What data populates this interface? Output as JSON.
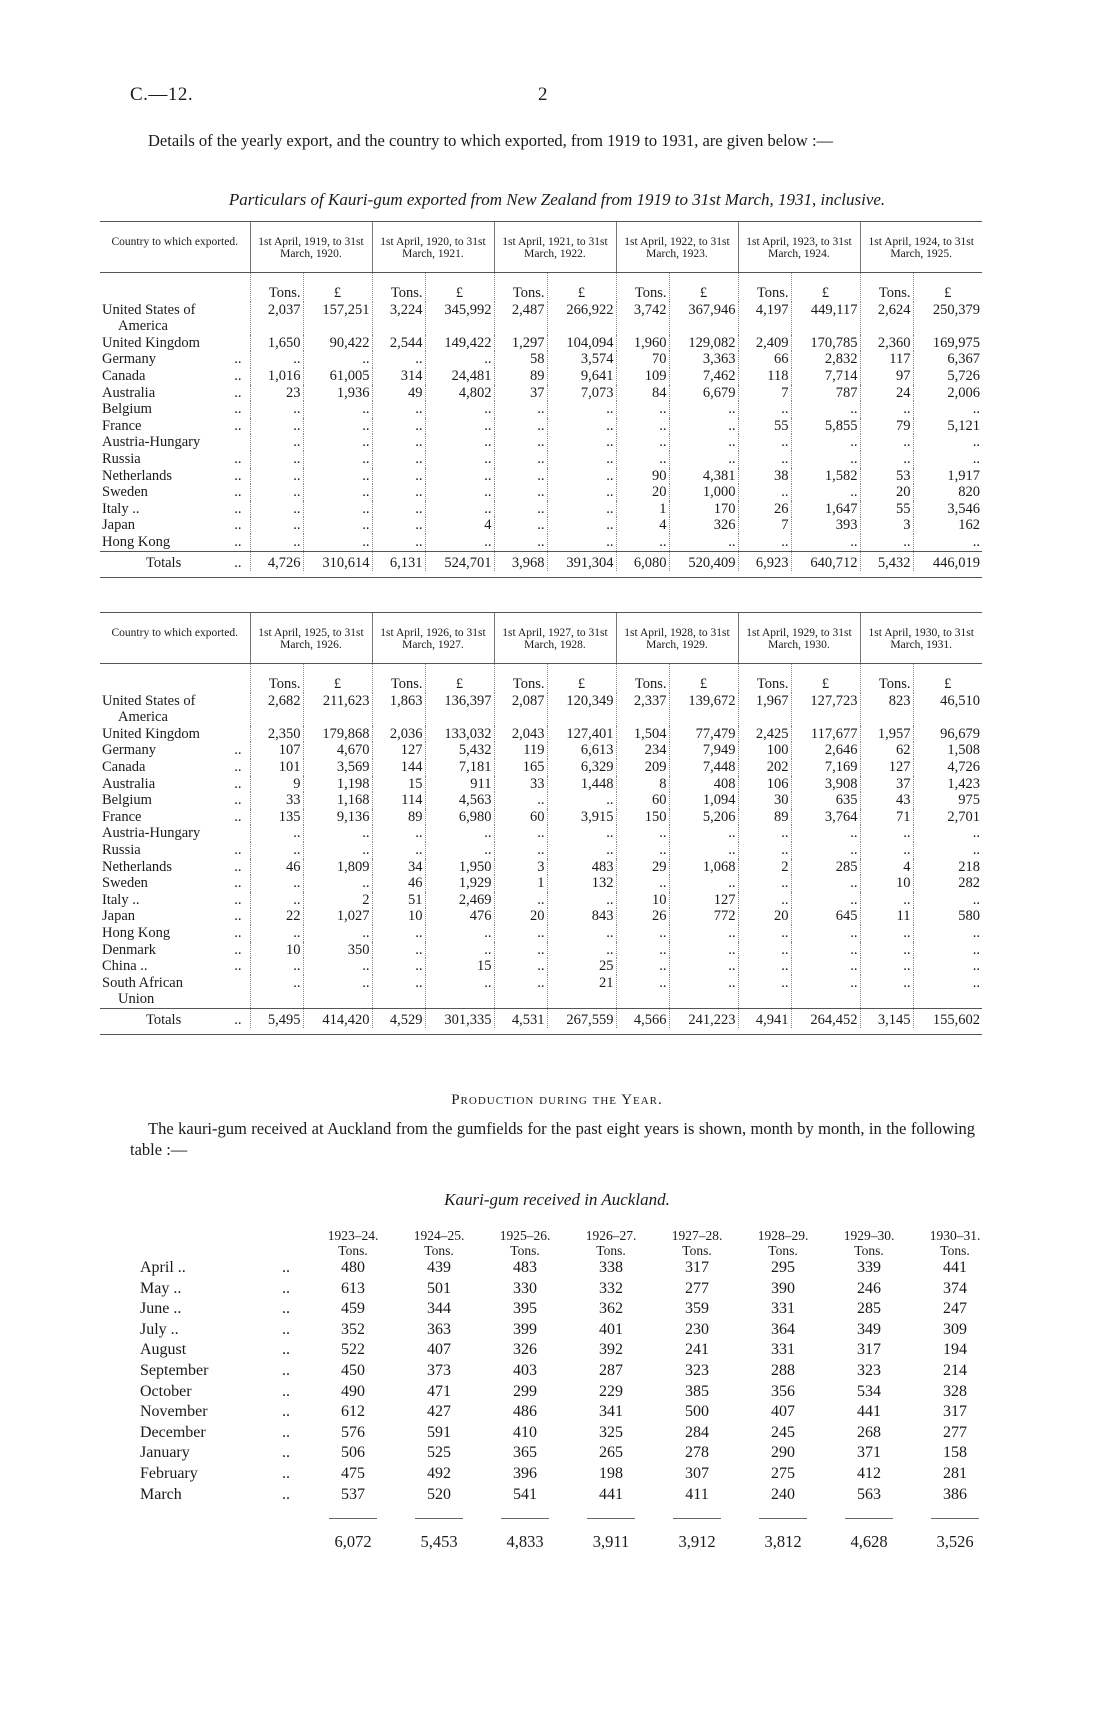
{
  "header": {
    "reference": "C.—12.",
    "page_number": "2"
  },
  "intro_paragraph": "Details of the yearly export, and the country to which exported, from 1919 to 1931, are given below :—",
  "export_table_title": "Particulars of Kauri-gum exported from New Zealand from 1919 to 31st March, 1931, inclusive.",
  "leader": "..",
  "units": {
    "tons": "Tons.",
    "pounds": "£"
  },
  "country_header": "Country to which exported.",
  "totals_label": "Totals",
  "export_tables": [
    {
      "periods": [
        "1st April, 1919, to 31st March, 1920.",
        "1st April, 1920, to 31st March, 1921.",
        "1st April, 1921, to 31st March, 1922.",
        "1st April, 1922, to 31st March, 1923.",
        "1st April, 1923, to 31st March, 1924.",
        "1st April, 1924, to 31st March, 1925."
      ],
      "rows": [
        {
          "country": "United States of",
          "continued": "America",
          "leader": false,
          "values": [
            "2,037",
            "157,251",
            "3,224",
            "345,992",
            "2,487",
            "266,922",
            "3,742",
            "367,946",
            "4,197",
            "449,117",
            "2,624",
            "250,379"
          ]
        },
        {
          "country": "United Kingdom",
          "leader": false,
          "values": [
            "1,650",
            "90,422",
            "2,544",
            "149,422",
            "1,297",
            "104,094",
            "1,960",
            "129,082",
            "2,409",
            "170,785",
            "2,360",
            "169,975"
          ]
        },
        {
          "country": "Germany",
          "leader": true,
          "values": [
            "..",
            "..",
            "..",
            "..",
            "58",
            "3,574",
            "70",
            "3,363",
            "66",
            "2,832",
            "117",
            "6,367"
          ]
        },
        {
          "country": "Canada",
          "leader": true,
          "values": [
            "1,016",
            "61,005",
            "314",
            "24,481",
            "89",
            "9,641",
            "109",
            "7,462",
            "118",
            "7,714",
            "97",
            "5,726"
          ]
        },
        {
          "country": "Australia",
          "leader": true,
          "values": [
            "23",
            "1,936",
            "49",
            "4,802",
            "37",
            "7,073",
            "84",
            "6,679",
            "7",
            "787",
            "24",
            "2,006"
          ]
        },
        {
          "country": "Belgium",
          "leader": true,
          "values": [
            "..",
            "..",
            "..",
            "..",
            "..",
            "..",
            "..",
            "..",
            "..",
            "..",
            "..",
            ".."
          ]
        },
        {
          "country": "France",
          "leader": true,
          "values": [
            "..",
            "..",
            "..",
            "..",
            "..",
            "..",
            "..",
            "..",
            "55",
            "5,855",
            "79",
            "5,121"
          ]
        },
        {
          "country": "Austria-Hungary",
          "leader": false,
          "values": [
            "..",
            "..",
            "..",
            "..",
            "..",
            "..",
            "..",
            "..",
            "..",
            "..",
            "..",
            ".."
          ]
        },
        {
          "country": "Russia",
          "leader": true,
          "values": [
            "..",
            "..",
            "..",
            "..",
            "..",
            "..",
            "..",
            "..",
            "..",
            "..",
            "..",
            ".."
          ]
        },
        {
          "country": "Netherlands",
          "leader": true,
          "values": [
            "..",
            "..",
            "..",
            "..",
            "..",
            "..",
            "90",
            "4,381",
            "38",
            "1,582",
            "53",
            "1,917"
          ]
        },
        {
          "country": "Sweden",
          "leader": true,
          "values": [
            "..",
            "..",
            "..",
            "..",
            "..",
            "..",
            "20",
            "1,000",
            "..",
            "..",
            "20",
            "820"
          ]
        },
        {
          "country": "Italy ..",
          "leader": true,
          "values": [
            "..",
            "..",
            "..",
            "..",
            "..",
            "..",
            "1",
            "170",
            "26",
            "1,647",
            "55",
            "3,546"
          ]
        },
        {
          "country": "Japan",
          "leader": true,
          "values": [
            "..",
            "..",
            "..",
            "4",
            "..",
            "..",
            "4",
            "326",
            "7",
            "393",
            "3",
            "162"
          ]
        },
        {
          "country": "Hong Kong",
          "leader": true,
          "values": [
            "..",
            "..",
            "..",
            "..",
            "..",
            "..",
            "..",
            "..",
            "..",
            "..",
            "..",
            ".."
          ]
        }
      ],
      "totals": [
        "4,726",
        "310,614",
        "6,131",
        "524,701",
        "3,968",
        "391,304",
        "6,080",
        "520,409",
        "6,923",
        "640,712",
        "5,432",
        "446,019"
      ]
    },
    {
      "periods": [
        "1st April, 1925, to 31st March, 1926.",
        "1st April, 1926, to 31st March, 1927.",
        "1st April, 1927, to 31st March, 1928.",
        "1st April, 1928, to 31st March, 1929.",
        "1st April, 1929, to 31st March, 1930.",
        "1st April, 1930, to 31st March, 1931."
      ],
      "rows": [
        {
          "country": "United States of",
          "continued": "America",
          "leader": false,
          "values": [
            "2,682",
            "211,623",
            "1,863",
            "136,397",
            "2,087",
            "120,349",
            "2,337",
            "139,672",
            "1,967",
            "127,723",
            "823",
            "46,510"
          ]
        },
        {
          "country": "United Kingdom",
          "leader": false,
          "values": [
            "2,350",
            "179,868",
            "2,036",
            "133,032",
            "2,043",
            "127,401",
            "1,504",
            "77,479",
            "2,425",
            "117,677",
            "1,957",
            "96,679"
          ]
        },
        {
          "country": "Germany",
          "leader": true,
          "values": [
            "107",
            "4,670",
            "127",
            "5,432",
            "119",
            "6,613",
            "234",
            "7,949",
            "100",
            "2,646",
            "62",
            "1,508"
          ]
        },
        {
          "country": "Canada",
          "leader": true,
          "values": [
            "101",
            "3,569",
            "144",
            "7,181",
            "165",
            "6,329",
            "209",
            "7,448",
            "202",
            "7,169",
            "127",
            "4,726"
          ]
        },
        {
          "country": "Australia",
          "leader": true,
          "values": [
            "9",
            "1,198",
            "15",
            "911",
            "33",
            "1,448",
            "8",
            "408",
            "106",
            "3,908",
            "37",
            "1,423"
          ]
        },
        {
          "country": "Belgium",
          "leader": true,
          "values": [
            "33",
            "1,168",
            "114",
            "4,563",
            "..",
            "..",
            "60",
            "1,094",
            "30",
            "635",
            "43",
            "975"
          ]
        },
        {
          "country": "France",
          "leader": true,
          "values": [
            "135",
            "9,136",
            "89",
            "6,980",
            "60",
            "3,915",
            "150",
            "5,206",
            "89",
            "3,764",
            "71",
            "2,701"
          ]
        },
        {
          "country": "Austria-Hungary",
          "leader": false,
          "values": [
            "..",
            "..",
            "..",
            "..",
            "..",
            "..",
            "..",
            "..",
            "..",
            "..",
            "..",
            ".."
          ]
        },
        {
          "country": "Russia",
          "leader": true,
          "values": [
            "..",
            "..",
            "..",
            "..",
            "..",
            "..",
            "..",
            "..",
            "..",
            "..",
            "..",
            ".."
          ]
        },
        {
          "country": "Netherlands",
          "leader": true,
          "values": [
            "46",
            "1,809",
            "34",
            "1,950",
            "3",
            "483",
            "29",
            "1,068",
            "2",
            "285",
            "4",
            "218"
          ]
        },
        {
          "country": "Sweden",
          "leader": true,
          "values": [
            "..",
            "..",
            "46",
            "1,929",
            "1",
            "132",
            "..",
            "..",
            "..",
            "..",
            "10",
            "282"
          ]
        },
        {
          "country": "Italy ..",
          "leader": true,
          "values": [
            "..",
            "2",
            "51",
            "2,469",
            "..",
            "..",
            "10",
            "127",
            "..",
            "..",
            "..",
            ".."
          ]
        },
        {
          "country": "Japan",
          "leader": true,
          "values": [
            "22",
            "1,027",
            "10",
            "476",
            "20",
            "843",
            "26",
            "772",
            "20",
            "645",
            "11",
            "580"
          ]
        },
        {
          "country": "Hong Kong",
          "leader": true,
          "values": [
            "..",
            "..",
            "..",
            "..",
            "..",
            "..",
            "..",
            "..",
            "..",
            "..",
            "..",
            ".."
          ]
        },
        {
          "country": "Denmark",
          "leader": true,
          "values": [
            "10",
            "350",
            "..",
            "..",
            "..",
            "..",
            "..",
            "..",
            "..",
            "..",
            "..",
            ".."
          ]
        },
        {
          "country": "China ..",
          "leader": true,
          "values": [
            "..",
            "..",
            "..",
            "15",
            "..",
            "25",
            "..",
            "..",
            "..",
            "..",
            "..",
            ".."
          ]
        },
        {
          "country": "South African",
          "continued": "Union",
          "leader": false,
          "values": [
            "..",
            "..",
            "..",
            "..",
            "..",
            "21",
            "..",
            "..",
            "..",
            "..",
            "..",
            ".."
          ]
        }
      ],
      "totals": [
        "5,495",
        "414,420",
        "4,529",
        "301,335",
        "4,531",
        "267,559",
        "4,566",
        "241,223",
        "4,941",
        "264,452",
        "3,145",
        "155,602"
      ]
    }
  ],
  "production_heading": "Production during the Year.",
  "production_paragraph": "The kauri-gum received at Auckland from the gumfields for the past eight years is shown, month by month, in the following table :—",
  "received_table": {
    "title": "Kauri-gum received in Auckland.",
    "years": [
      "1923–24.",
      "1924–25.",
      "1925–26.",
      "1926–27.",
      "1927–28.",
      "1928–29.",
      "1929–30.",
      "1930–31."
    ],
    "unit": "Tons.",
    "rows": [
      {
        "month": "April ..",
        "values": [
          "480",
          "439",
          "483",
          "338",
          "317",
          "295",
          "339",
          "441"
        ]
      },
      {
        "month": "May ..",
        "values": [
          "613",
          "501",
          "330",
          "332",
          "277",
          "390",
          "246",
          "374"
        ]
      },
      {
        "month": "June ..",
        "values": [
          "459",
          "344",
          "395",
          "362",
          "359",
          "331",
          "285",
          "247"
        ]
      },
      {
        "month": "July ..",
        "values": [
          "352",
          "363",
          "399",
          "401",
          "230",
          "364",
          "349",
          "309"
        ]
      },
      {
        "month": "August",
        "values": [
          "522",
          "407",
          "326",
          "392",
          "241",
          "331",
          "317",
          "194"
        ]
      },
      {
        "month": "September",
        "values": [
          "450",
          "373",
          "403",
          "287",
          "323",
          "288",
          "323",
          "214"
        ]
      },
      {
        "month": "October",
        "values": [
          "490",
          "471",
          "299",
          "229",
          "385",
          "356",
          "534",
          "328"
        ]
      },
      {
        "month": "November",
        "values": [
          "612",
          "427",
          "486",
          "341",
          "500",
          "407",
          "441",
          "317"
        ]
      },
      {
        "month": "December",
        "values": [
          "576",
          "591",
          "410",
          "325",
          "284",
          "245",
          "268",
          "277"
        ]
      },
      {
        "month": "January",
        "values": [
          "506",
          "525",
          "365",
          "265",
          "278",
          "290",
          "371",
          "158"
        ]
      },
      {
        "month": "February",
        "values": [
          "475",
          "492",
          "396",
          "198",
          "307",
          "275",
          "412",
          "281"
        ]
      },
      {
        "month": "March",
        "values": [
          "537",
          "520",
          "541",
          "441",
          "411",
          "240",
          "563",
          "386"
        ]
      }
    ],
    "totals": [
      "6,072",
      "5,453",
      "4,833",
      "3,911",
      "3,912",
      "3,812",
      "4,628",
      "3,526"
    ]
  }
}
